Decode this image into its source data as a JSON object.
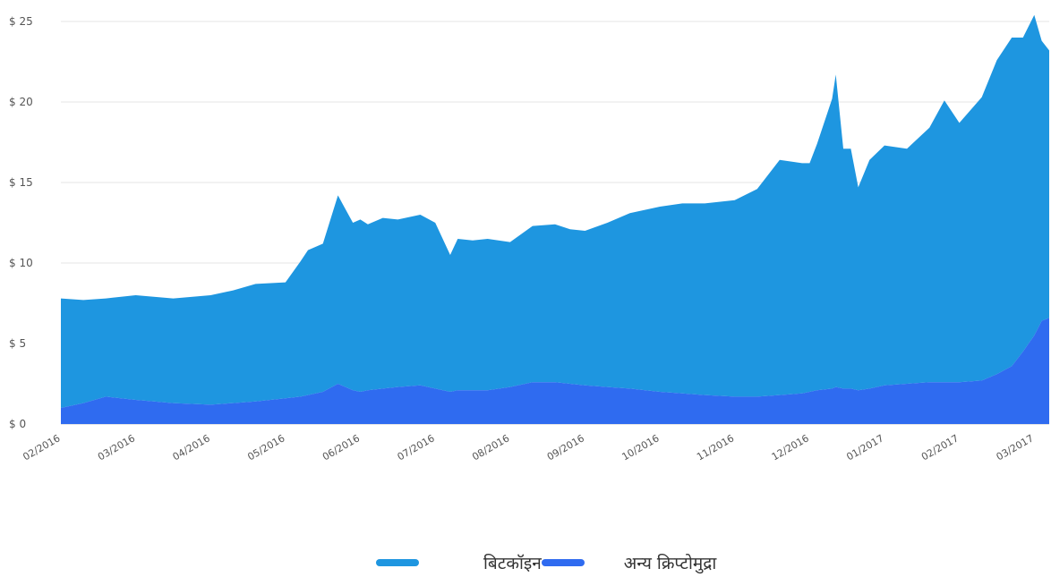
{
  "chart_data": {
    "type": "area",
    "stacked": true,
    "title": "",
    "xlabel": "",
    "ylabel": "",
    "ylim": [
      0,
      26
    ],
    "grid": true,
    "legend_position": "bottom-center",
    "y_ticks": [
      "$ 0",
      "$ 5",
      "$ 10",
      "$ 15",
      "$ 20",
      "$ 25"
    ],
    "y_tick_values": [
      0,
      5,
      10,
      15,
      20,
      25
    ],
    "x_ticks": [
      "02/2016",
      "03/2016",
      "04/2016",
      "05/2016",
      "06/2016",
      "07/2016",
      "08/2016",
      "09/2016",
      "10/2016",
      "11/2016",
      "12/2016",
      "01/2017",
      "02/2017",
      "03/2017"
    ],
    "x_tick_values": [
      0,
      1,
      2,
      3,
      4,
      5,
      6,
      7,
      8,
      9,
      10,
      11,
      12,
      13
    ],
    "series": [
      {
        "name": "बिटकॉइन",
        "color": "#1E96E0",
        "x": [
          0,
          0.3,
          0.6,
          1.0,
          1.5,
          2.0,
          2.3,
          2.6,
          3.0,
          3.2,
          3.3,
          3.5,
          3.7,
          3.9,
          4.0,
          4.1,
          4.3,
          4.5,
          4.8,
          5.0,
          5.2,
          5.3,
          5.5,
          5.7,
          6.0,
          6.3,
          6.6,
          6.8,
          7.0,
          7.3,
          7.6,
          8.0,
          8.3,
          8.6,
          9.0,
          9.3,
          9.6,
          9.9,
          10.0,
          10.1,
          10.3,
          10.35,
          10.45,
          10.55,
          10.65,
          10.8,
          11.0,
          11.3,
          11.6,
          11.8,
          12.0,
          12.3,
          12.5,
          12.7,
          12.85,
          13.0,
          13.1,
          13.2
        ],
        "values": [
          6.8,
          6.4,
          6.1,
          6.5,
          6.5,
          6.8,
          7.0,
          7.3,
          7.2,
          8.4,
          9.0,
          9.2,
          11.7,
          10.4,
          10.7,
          10.3,
          10.6,
          10.4,
          10.6,
          10.3,
          8.5,
          9.4,
          9.3,
          9.4,
          9.0,
          9.7,
          9.8,
          9.6,
          9.6,
          10.2,
          10.9,
          11.5,
          11.8,
          11.9,
          12.2,
          12.9,
          14.6,
          14.3,
          14.2,
          15.3,
          18.0,
          19.4,
          14.9,
          14.9,
          12.6,
          14.2,
          14.9,
          14.6,
          15.8,
          17.5,
          16.1,
          17.6,
          19.5,
          20.4,
          19.5,
          19.9,
          17.4,
          16.6
        ]
      },
      {
        "name": "अन्य  क्रिप्टोमुद्रा",
        "color": "#2F6BF0",
        "x": [
          0,
          0.3,
          0.6,
          1.0,
          1.5,
          2.0,
          2.3,
          2.6,
          3.0,
          3.2,
          3.3,
          3.5,
          3.7,
          3.9,
          4.0,
          4.1,
          4.3,
          4.5,
          4.8,
          5.0,
          5.2,
          5.3,
          5.5,
          5.7,
          6.0,
          6.3,
          6.6,
          6.8,
          7.0,
          7.3,
          7.6,
          8.0,
          8.3,
          8.6,
          9.0,
          9.3,
          9.6,
          9.9,
          10.0,
          10.1,
          10.3,
          10.35,
          10.45,
          10.55,
          10.65,
          10.8,
          11.0,
          11.3,
          11.6,
          11.8,
          12.0,
          12.3,
          12.5,
          12.7,
          12.85,
          13.0,
          13.1,
          13.2
        ],
        "values": [
          1.0,
          1.3,
          1.7,
          1.5,
          1.3,
          1.2,
          1.3,
          1.4,
          1.6,
          1.7,
          1.8,
          2.0,
          2.5,
          2.1,
          2.0,
          2.1,
          2.2,
          2.3,
          2.4,
          2.2,
          2.0,
          2.1,
          2.1,
          2.1,
          2.3,
          2.6,
          2.6,
          2.5,
          2.4,
          2.3,
          2.2,
          2.0,
          1.9,
          1.8,
          1.7,
          1.7,
          1.8,
          1.9,
          2.0,
          2.1,
          2.2,
          2.3,
          2.2,
          2.2,
          2.1,
          2.2,
          2.4,
          2.5,
          2.6,
          2.6,
          2.6,
          2.7,
          3.1,
          3.6,
          4.5,
          5.5,
          6.4,
          6.6
        ]
      }
    ]
  }
}
